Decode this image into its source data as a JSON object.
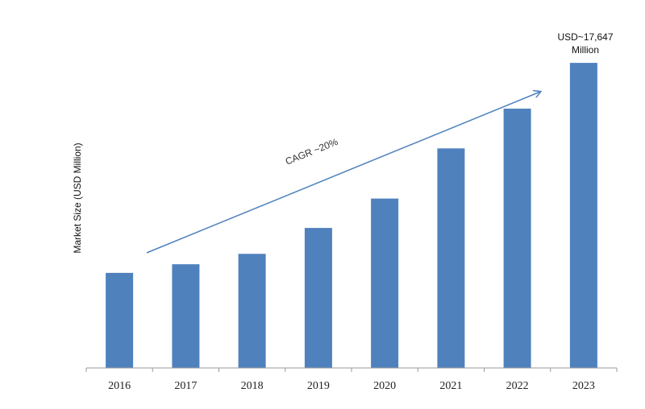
{
  "chart_data": {
    "type": "bar",
    "title": "",
    "xlabel": "",
    "ylabel": "Market Size (USD Million)",
    "categories": [
      "2016",
      "2017",
      "2018",
      "2019",
      "2020",
      "2021",
      "2022",
      "2023"
    ],
    "values": [
      5500,
      6000,
      6600,
      8100,
      9800,
      12700,
      15000,
      17647
    ],
    "ylim": [
      0,
      19000
    ],
    "grid": false,
    "legend": "none",
    "bar_color": "#4f81bd",
    "arrow_color": "#4f81bd",
    "annotations": {
      "value_label_line1": "USD~17,647",
      "value_label_line2": "Million",
      "cagr": "CAGR ~20%"
    }
  }
}
